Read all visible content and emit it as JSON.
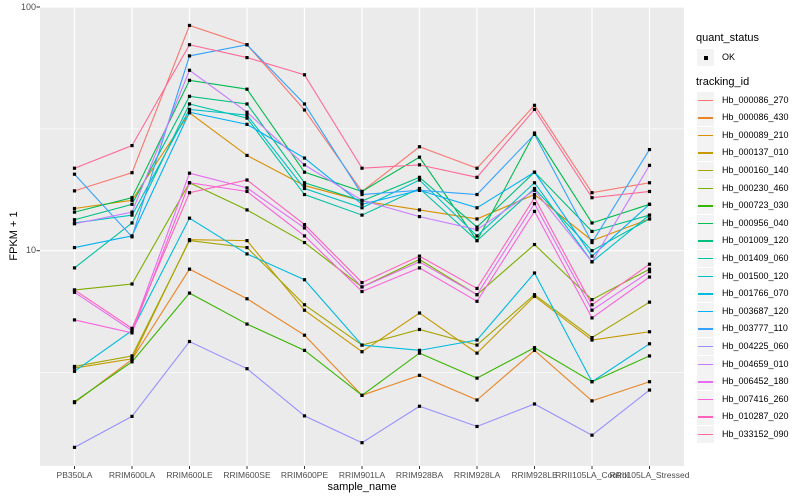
{
  "colors": {
    "panel_bg": "#EBEBEB",
    "grid": "#FFFFFF",
    "tick_mark": "#333333",
    "tick_label": "#4D4D4D",
    "point": "#000000",
    "legend_key_bg": "#F3F3F3"
  },
  "axes": {
    "y_title": "FPKM + 1",
    "x_title": "sample_name",
    "y_ticks": [
      {
        "label": "100",
        "value": 100
      },
      {
        "label": "10",
        "value": 10
      }
    ],
    "y_minor_breaks": [
      31.62,
      3.162
    ]
  },
  "legend": {
    "quant_status": {
      "title": "quant_status",
      "items": [
        {
          "label": "OK"
        }
      ]
    },
    "tracking": {
      "title": "tracking_id"
    }
  },
  "chart_data": {
    "type": "line",
    "xlabel": "sample_name",
    "ylabel": "FPKM + 1",
    "yscale": "log10",
    "ylim": [
      1.3,
      105
    ],
    "grid": true,
    "legend_position": "right",
    "point_marker": "black square (quant_status OK)",
    "categories": [
      "PB350LA",
      "RRIM600LA",
      "RRIM600LE",
      "RRIM600SE",
      "RRIM600PE",
      "RRIM901LA",
      "RRIM928BA",
      "RRIM928LA",
      "RRIM928LE",
      "RRII105LA_Control",
      "RRII105LA_Stressed"
    ],
    "series": [
      {
        "name": "Hb_000086_270",
        "color": "#F8766D",
        "values": [
          17.6,
          20.9,
          84,
          70,
          37.8,
          17.5,
          26.7,
          21.8,
          39.5,
          17.3,
          19
        ]
      },
      {
        "name": "Hb_000086_430",
        "color": "#E88526",
        "values": [
          2.38,
          3.58,
          8.4,
          6.35,
          4.5,
          2.55,
          3.08,
          2.44,
          3.9,
          2.42,
          2.9
        ]
      },
      {
        "name": "Hb_000089_210",
        "color": "#D89000",
        "values": [
          14.9,
          16.1,
          36.8,
          24.6,
          18.5,
          16.0,
          14.7,
          13.5,
          17.0,
          11.0,
          13.5
        ]
      },
      {
        "name": "Hb_000137_010",
        "color": "#C49A00",
        "values": [
          3.3,
          3.6,
          11.1,
          11.0,
          5.7,
          3.85,
          5.55,
          3.8,
          6.5,
          4.3,
          4.65
        ]
      },
      {
        "name": "Hb_000160_140",
        "color": "#A3A500",
        "values": [
          3.35,
          3.7,
          11.0,
          10.3,
          6.0,
          4.1,
          4.75,
          4.1,
          6.6,
          4.4,
          6.15
        ]
      },
      {
        "name": "Hb_000230_460",
        "color": "#7CAE00",
        "values": [
          6.9,
          7.3,
          19,
          14.7,
          10.8,
          7.1,
          9.2,
          6.6,
          10.6,
          6.3,
          8.4
        ]
      },
      {
        "name": "Hb_000723_030",
        "color": "#39B600",
        "values": [
          2.4,
          3.5,
          6.7,
          5.0,
          3.9,
          2.55,
          3.8,
          3.0,
          4.0,
          2.9,
          3.7
        ]
      },
      {
        "name": "Hb_000956_040",
        "color": "#00BB4E",
        "values": [
          14.4,
          16.5,
          50,
          46,
          21,
          17.5,
          24.2,
          11.0,
          30.4,
          13.0,
          15.5
        ]
      },
      {
        "name": "Hb_001009_120",
        "color": "#00BF7D",
        "values": [
          13.4,
          15.5,
          43,
          40,
          19,
          16,
          20,
          12.5,
          21,
          12.0,
          14.0
        ]
      },
      {
        "name": "Hb_001409_060",
        "color": "#00C1A3",
        "values": [
          8.5,
          13.0,
          40,
          35,
          17,
          14,
          18,
          11.0,
          18,
          10.0,
          13.5
        ]
      },
      {
        "name": "Hb_001500_120",
        "color": "#00BFC4",
        "values": [
          13.0,
          14.0,
          38,
          36,
          18,
          15,
          19.5,
          11.5,
          19,
          9.0,
          14.0
        ]
      },
      {
        "name": "Hb_001766_070",
        "color": "#00BAE0",
        "values": [
          3.2,
          4.7,
          13.6,
          9.7,
          7.6,
          4.1,
          3.9,
          4.3,
          8.1,
          2.9,
          4.15
        ]
      },
      {
        "name": "Hb_003687_120",
        "color": "#00B0F6",
        "values": [
          10.3,
          11.5,
          37,
          33,
          24,
          15.5,
          17.7,
          15,
          21,
          9.5,
          15.5
        ]
      },
      {
        "name": "Hb_003777_110",
        "color": "#35A2FF",
        "values": [
          20.6,
          11.4,
          63,
          70,
          40,
          17,
          17.7,
          17,
          30,
          10.8,
          26
        ]
      },
      {
        "name": "Hb_004225_060",
        "color": "#9590FF",
        "values": [
          1.56,
          2.09,
          4.24,
          3.28,
          2.1,
          1.63,
          2.3,
          1.9,
          2.35,
          1.75,
          2.68
        ]
      },
      {
        "name": "Hb_004659_010",
        "color": "#C77CFF",
        "values": [
          12.9,
          14.4,
          55,
          37,
          22.5,
          16.1,
          13.8,
          12.2,
          17.7,
          9.0,
          22.4
        ]
      },
      {
        "name": "Hb_006452_180",
        "color": "#E76BF3",
        "values": [
          6.75,
          4.7,
          20.8,
          18.1,
          12.4,
          7.1,
          9.0,
          6.6,
          15.6,
          5.7,
          8.2
        ]
      },
      {
        "name": "Hb_007416_260",
        "color": "#FA62DB",
        "values": [
          5.2,
          4.6,
          19,
          17.5,
          11.5,
          6.8,
          8.5,
          6.2,
          14.5,
          5.3,
          7.8
        ]
      },
      {
        "name": "Hb_010287_020",
        "color": "#FF62BC",
        "values": [
          6.9,
          4.8,
          17.3,
          19.5,
          12.8,
          7.4,
          9.5,
          7.0,
          16.5,
          6.0,
          8.8
        ]
      },
      {
        "name": "Hb_033152_090",
        "color": "#FF6A98",
        "values": [
          21.8,
          27,
          70,
          62,
          52.7,
          21.8,
          22.5,
          20,
          38,
          16.5,
          17.5
        ]
      }
    ]
  }
}
